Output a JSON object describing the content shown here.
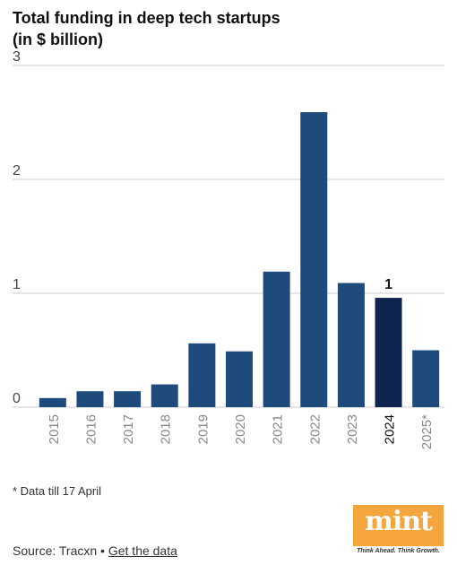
{
  "chart_data": {
    "type": "bar",
    "title_line1": "Total funding in deep tech startups",
    "title_line2": "(in $ billion)",
    "categories": [
      "2015",
      "2016",
      "2017",
      "2018",
      "2019",
      "2020",
      "2021",
      "2022",
      "2023",
      "2024",
      "2025*"
    ],
    "values": [
      0.08,
      0.14,
      0.14,
      0.2,
      0.56,
      0.49,
      1.19,
      2.59,
      1.09,
      0.96,
      0.5
    ],
    "highlight_index": 9,
    "highlight_label": "1",
    "ylim": [
      0,
      3
    ],
    "yticks": [
      "0",
      "1",
      "2",
      "3"
    ],
    "grid": true,
    "colors": {
      "bar": "#1f4a7c",
      "highlight": "#0f2550",
      "grid": "#cccccc",
      "tick": "#888888",
      "highlight_tick": "#111111"
    }
  },
  "footnote": "* Data till 17 April",
  "source": {
    "label": "Source: Tracxn",
    "separator": "•",
    "link": "Get the data"
  },
  "logo": {
    "word": "mint",
    "tagline": "Think Ahead. Think Growth.",
    "color": "#f4a53c"
  }
}
